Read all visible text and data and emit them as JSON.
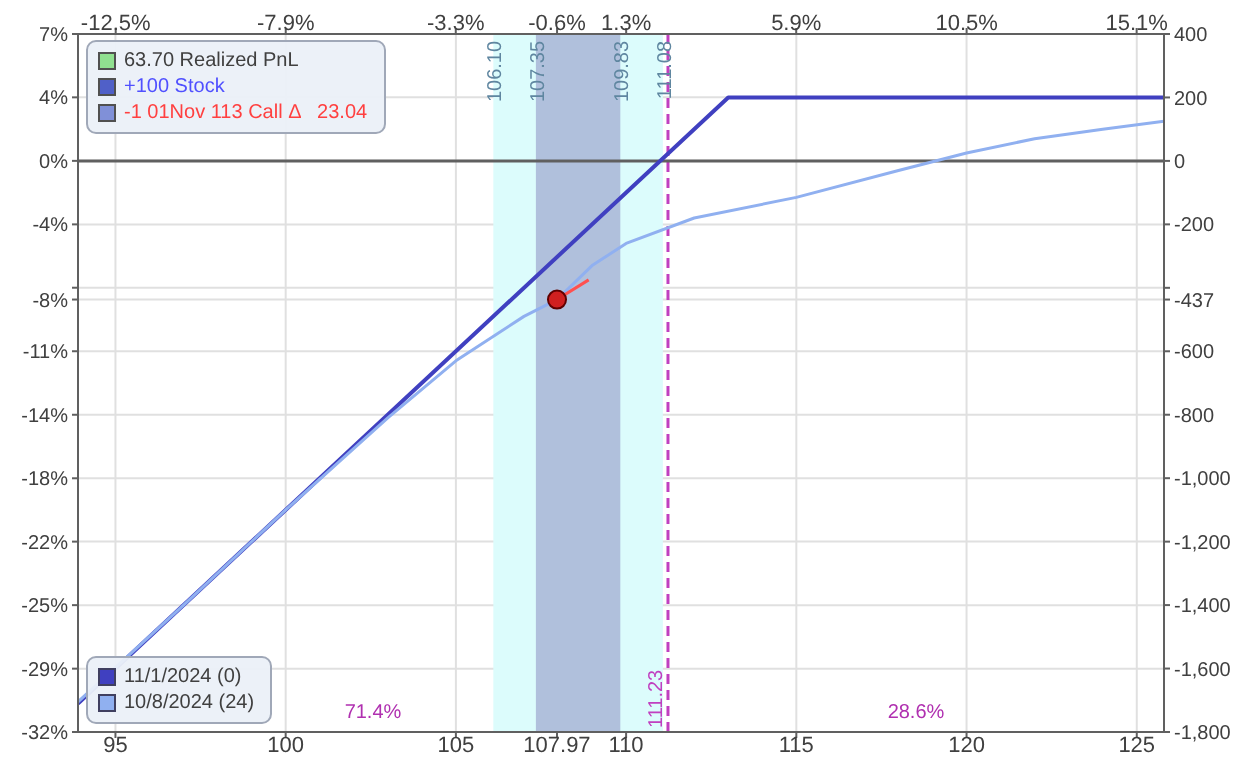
{
  "chart_data": {
    "type": "line",
    "annotations": [
      "63.70 Realized PnL",
      "+100 Stock",
      "-1 01Nov 113 Call Δ   23.04",
      {
        "text": "106.10",
        "x": 106.1,
        "y": 6.8
      },
      {
        "text": "107.35",
        "x": 107.35,
        "y": 6.8
      },
      {
        "text": "109.83",
        "x": 109.83,
        "y": 6.8
      },
      {
        "text": "111.08",
        "x": 111.08,
        "y": 6.8
      },
      "71.4%",
      "28.6%"
    ],
    "xlim": [
      93.9,
      125.8
    ],
    "xticks": [
      95,
      100,
      105,
      {
        "value": 107.97,
        "label": "107.97"
      },
      110,
      115,
      120,
      125
    ],
    "x2lim": [
      -13.53,
      15.85
    ],
    "x2ticks": [
      {
        "value": -12.51,
        "label": "-12.5%"
      },
      {
        "value": -7.91,
        "label": "-7.9%"
      },
      {
        "value": -3.31,
        "label": "-3.3%"
      },
      {
        "value": -0.57,
        "label": "-0.6%"
      },
      {
        "value": 1.3,
        "label": "1.3%"
      },
      {
        "value": 5.9,
        "label": "5.9%"
      },
      {
        "value": 10.51,
        "label": "10.5%"
      },
      {
        "value": 15.11,
        "label": "15.1%"
      }
    ],
    "ylim": [
      -32.37,
      7.19
    ],
    "yticks": [
      {
        "value": 7.19,
        "label": "7%"
      },
      {
        "value": 3.6,
        "label": "4%"
      },
      {
        "value": 0,
        "label": "0%"
      },
      {
        "value": -3.6,
        "label": "-4%"
      },
      {
        "value": -7.19,
        "label": null
      },
      {
        "value": -7.86,
        "label": "-8%"
      },
      {
        "value": -10.79,
        "label": "-11%"
      },
      {
        "value": -14.39,
        "label": "-14%"
      },
      {
        "value": -17.99,
        "label": "-18%"
      },
      {
        "value": -21.58,
        "label": "-22%"
      },
      {
        "value": -25.18,
        "label": "-25%"
      },
      {
        "value": -28.78,
        "label": "-29%"
      },
      {
        "value": -32.37,
        "label": "-32%"
      }
    ],
    "y2lim": [
      -1800,
      400
    ],
    "y2ticks": [
      400,
      200,
      0,
      -200,
      {
        "value": -400,
        "label": null
      },
      {
        "value": -437,
        "label": "-437"
      },
      -600,
      -800,
      {
        "value": -1000,
        "label": "-1,000"
      },
      {
        "value": -1200,
        "label": "-1,200"
      },
      {
        "value": -1400,
        "label": "-1,400"
      },
      {
        "value": -1600,
        "label": "-1,600"
      },
      {
        "value": -1800,
        "label": "-1,800"
      }
    ],
    "bands": [
      {
        "axis": "x",
        "from": 106.1,
        "to": 111.08,
        "color": "#dcfcfc"
      },
      {
        "axis": "x",
        "from": 107.35,
        "to": 109.83,
        "color": "#b0c0dc"
      }
    ],
    "ref_lines": [
      {
        "axis": "x",
        "value": 111.23,
        "label": "111.23",
        "color": "#c040c0",
        "line_style": "dashed"
      },
      {
        "axis": "y2",
        "value": 0,
        "color": "#606060",
        "line_style": "solid"
      }
    ],
    "grid": true,
    "legend": "bottom left",
    "marker": "none",
    "series": [
      {
        "name": "11/1/2024 (0)",
        "color": "#4040c0",
        "axis": "y2",
        "x": [
          93.9,
          113,
          125.8
        ],
        "values": [
          -1710,
          200,
          200
        ]
      },
      {
        "name": "10/8/2024 (24)",
        "color": "#90b0f0",
        "axis": "y2",
        "x": [
          93.9,
          97,
          100,
          103,
          105,
          107,
          107.97,
          109,
          110,
          112,
          115,
          118,
          120,
          122,
          124,
          125.8
        ],
        "values": [
          -1705,
          -1400,
          -1100,
          -810,
          -630,
          -490,
          -437,
          -330,
          -260,
          -180,
          -115,
          -30,
          25,
          70,
          100,
          125
        ]
      },
      {
        "type": "line",
        "color": "#ff5050",
        "axis": "y2",
        "x": [
          107.97,
          108.9
        ],
        "values": [
          -437,
          -375
        ]
      },
      {
        "type": "scatter",
        "color": "#d02020",
        "axis": "y2",
        "x": [
          107.97
        ],
        "values": [
          -437
        ],
        "marker": "circle"
      }
    ]
  }
}
